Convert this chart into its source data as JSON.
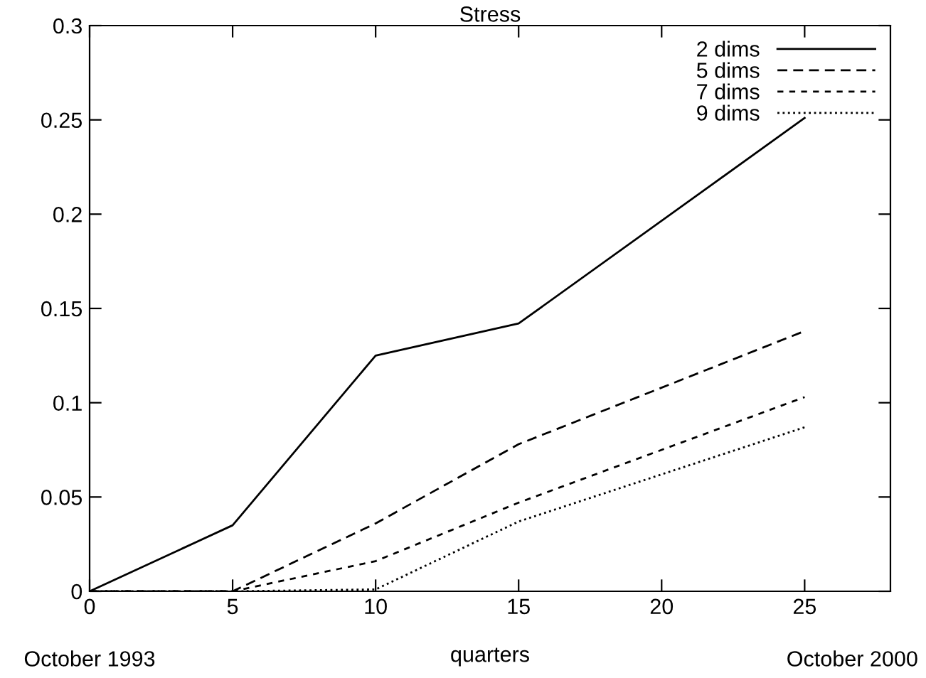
{
  "chart_data": {
    "type": "line",
    "title": "Stress",
    "xlabel": "quarters",
    "x": [
      0,
      5,
      10,
      15,
      25
    ],
    "series": [
      {
        "name": "2 dims",
        "color": "#000000",
        "line_style": "solid",
        "values": [
          0,
          0.035,
          0.125,
          0.142,
          0.251
        ]
      },
      {
        "name": "5 dims",
        "color": "#000000",
        "line_style": "dashed",
        "values": [
          0,
          0,
          0.036,
          0.078,
          0.138
        ]
      },
      {
        "name": "7 dims",
        "color": "#000000",
        "line_style": "dashed",
        "values": [
          0,
          0,
          0.016,
          0.047,
          0.103
        ]
      },
      {
        "name": "9 dims",
        "color": "#000000",
        "line_style": "dotted",
        "values": [
          0,
          0,
          0.001,
          0.037,
          0.087
        ]
      }
    ],
    "xlim": [
      0,
      28
    ],
    "xticks": [
      0,
      5,
      10,
      15,
      20,
      25
    ],
    "ylim": [
      0,
      0.3
    ],
    "yticks": [
      0,
      0.05,
      0.1,
      0.15,
      0.2,
      0.25,
      0.3
    ],
    "grid": false,
    "legend": "top right",
    "marker": "none",
    "annotations": [
      "October 1993",
      "October 2000"
    ]
  }
}
